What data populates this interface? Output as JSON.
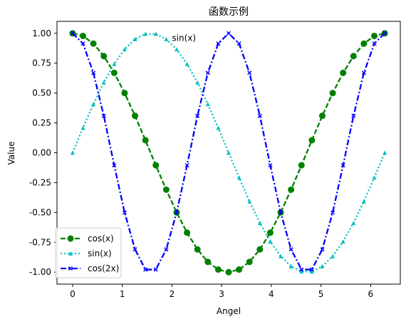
{
  "chart_data": {
    "type": "line",
    "title": "函数示例",
    "xlabel": "Angel",
    "ylabel": "Value",
    "xlim": [
      -0.314,
      6.597
    ],
    "ylim": [
      -1.1,
      1.1
    ],
    "xticks": [
      0,
      1,
      2,
      3,
      4,
      5,
      6
    ],
    "xtick_labels": [
      "0",
      "1",
      "2",
      "3",
      "4",
      "5",
      "6"
    ],
    "yticks": [
      1.0,
      0.75,
      0.5,
      0.25,
      0.0,
      -0.25,
      -0.5,
      -0.75,
      -1.0
    ],
    "ytick_labels": [
      "1.00",
      "0.75",
      "0.50",
      "0.25",
      "0.00",
      "-0.25",
      "-0.50",
      "-0.75",
      "-1.00"
    ],
    "grid": false,
    "legend_position": "lower-left",
    "annotation": {
      "text": "sin(x)",
      "x": 2.0,
      "y": 0.96
    },
    "x": [
      0.0,
      0.2094,
      0.4189,
      0.6283,
      0.8378,
      1.0472,
      1.2566,
      1.4661,
      1.6755,
      1.885,
      2.0944,
      2.3038,
      2.5133,
      2.7227,
      2.9322,
      3.1416,
      3.351,
      3.5605,
      3.7699,
      3.9794,
      4.1888,
      4.3982,
      4.6077,
      4.8171,
      5.0265,
      5.236,
      5.4454,
      5.6549,
      5.8643,
      6.0737,
      6.2832
    ],
    "series": [
      {
        "name": "cos(x)",
        "color": "#008000",
        "style": "dashed",
        "marker": "circle",
        "values": [
          1.0,
          0.978,
          0.914,
          0.809,
          0.669,
          0.5,
          0.309,
          0.105,
          -0.105,
          -0.309,
          -0.5,
          -0.669,
          -0.809,
          -0.914,
          -0.978,
          -1.0,
          -0.978,
          -0.914,
          -0.809,
          -0.669,
          -0.5,
          -0.309,
          -0.105,
          0.105,
          0.309,
          0.5,
          0.669,
          0.809,
          0.914,
          0.978,
          1.0
        ]
      },
      {
        "name": "sin(x)",
        "color": "#00bfbf",
        "style": "dotted",
        "marker": "triangle",
        "values": [
          0.0,
          0.208,
          0.407,
          0.588,
          0.743,
          0.866,
          0.951,
          0.995,
          0.995,
          0.951,
          0.866,
          0.743,
          0.588,
          0.407,
          0.208,
          0.0,
          -0.208,
          -0.407,
          -0.588,
          -0.743,
          -0.866,
          -0.951,
          -0.995,
          -0.995,
          -0.951,
          -0.866,
          -0.743,
          -0.588,
          -0.407,
          -0.208,
          0.0
        ]
      },
      {
        "name": "cos(2x)",
        "color": "#0000ff",
        "style": "dashdot",
        "marker": "x",
        "values": [
          1.0,
          0.914,
          0.669,
          0.309,
          -0.105,
          -0.5,
          -0.809,
          -0.978,
          -0.978,
          -0.809,
          -0.5,
          -0.105,
          0.309,
          0.669,
          0.914,
          1.0,
          0.914,
          0.669,
          0.309,
          -0.105,
          -0.5,
          -0.809,
          -0.978,
          -0.978,
          -0.809,
          -0.5,
          -0.105,
          0.309,
          0.669,
          0.914,
          1.0
        ]
      }
    ]
  }
}
